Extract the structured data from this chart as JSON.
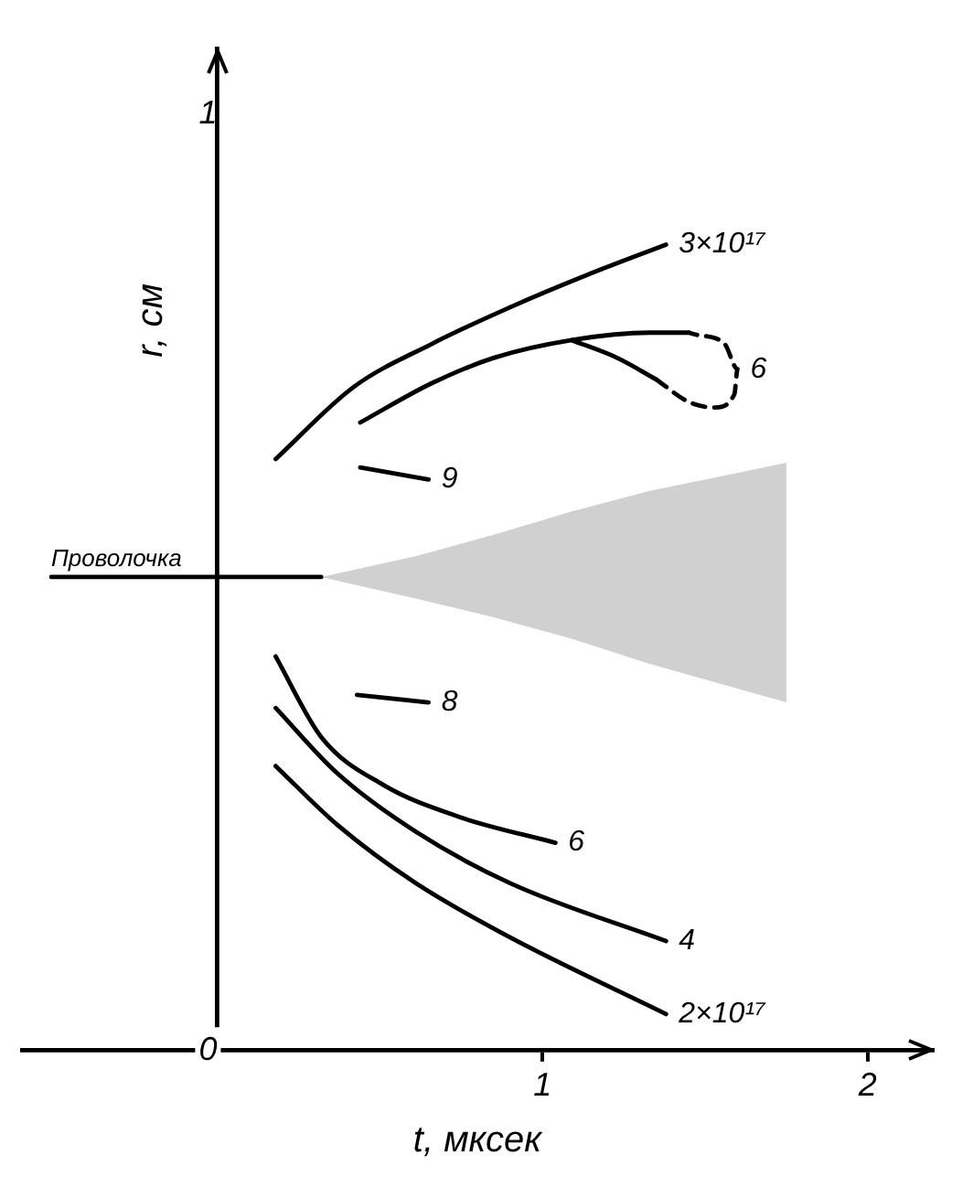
{
  "chart_data": {
    "type": "line",
    "xlabel": "t, мксек",
    "ylabel": "r, см",
    "xlim": [
      -0.6,
      2.2
    ],
    "xticks": [
      1,
      2
    ],
    "ylim": [
      0,
      1.07
    ],
    "yticks": [
      0,
      1
    ],
    "grid": false,
    "legend": false,
    "marker": "none",
    "series": [
      {
        "name": "3×10¹⁷",
        "color": "#000000",
        "x": [
          0.18,
          0.42,
          0.66,
          0.9,
          1.14,
          1.38
        ],
        "values": [
          0.632,
          0.709,
          0.755,
          0.794,
          0.829,
          0.861
        ]
      },
      {
        "color": "#000000",
        "x": [
          0.44,
          0.66,
          0.85,
          1.09,
          1.33,
          1.45
        ],
        "values": [
          0.671,
          0.713,
          0.74,
          0.759,
          0.767,
          0.767
        ]
      },
      {
        "color": "#000000",
        "x": [
          1.09,
          1.23,
          1.35
        ],
        "values": [
          0.759,
          0.74,
          0.717
        ]
      },
      {
        "name": "6",
        "color": "#000000",
        "line_style": "dashed",
        "x": [
          1.35,
          1.45,
          1.53,
          1.59,
          1.6,
          1.56,
          1.47,
          1.45
        ],
        "values": [
          0.717,
          0.693,
          0.687,
          0.701,
          0.728,
          0.755,
          0.765,
          0.767
        ]
      },
      {
        "name": "9",
        "color": "#000000",
        "x": [
          0.44,
          0.65
        ],
        "values": [
          0.623,
          0.61
        ]
      },
      {
        "name": "Проволочка",
        "color": "#000000",
        "x": [
          -0.51,
          0,
          0.32,
          0.61,
          0.85,
          1.09,
          1.33,
          1.75
        ],
        "values": [
          0.506,
          0.506,
          0.506,
          null,
          null,
          null,
          null,
          null
        ],
        "lower": [
          null,
          null,
          0.506,
          0.483,
          0.463,
          0.44,
          0.413,
          0.372
        ],
        "upper": [
          null,
          null,
          0.506,
          0.528,
          0.551,
          0.576,
          0.598,
          0.628
        ]
      },
      {
        "name": "8",
        "color": "#000000",
        "x": [
          0.43,
          0.65
        ],
        "values": [
          0.38,
          0.372
        ]
      },
      {
        "name": "6",
        "color": "#000000",
        "x": [
          0.18,
          0.32,
          0.51,
          0.75,
          1.04
        ],
        "values": [
          0.421,
          0.335,
          0.284,
          0.249,
          0.222
        ]
      },
      {
        "name": "4",
        "color": "#000000",
        "x": [
          0.18,
          0.37,
          0.61,
          0.9,
          1.38
        ],
        "values": [
          0.366,
          0.296,
          0.234,
          0.179,
          0.117
        ]
      },
      {
        "name": "2×10¹⁷",
        "color": "#000000",
        "x": [
          0.18,
          0.37,
          0.61,
          0.9,
          1.38
        ],
        "values": [
          0.304,
          0.241,
          0.179,
          0.121,
          0.039
        ]
      }
    ]
  }
}
